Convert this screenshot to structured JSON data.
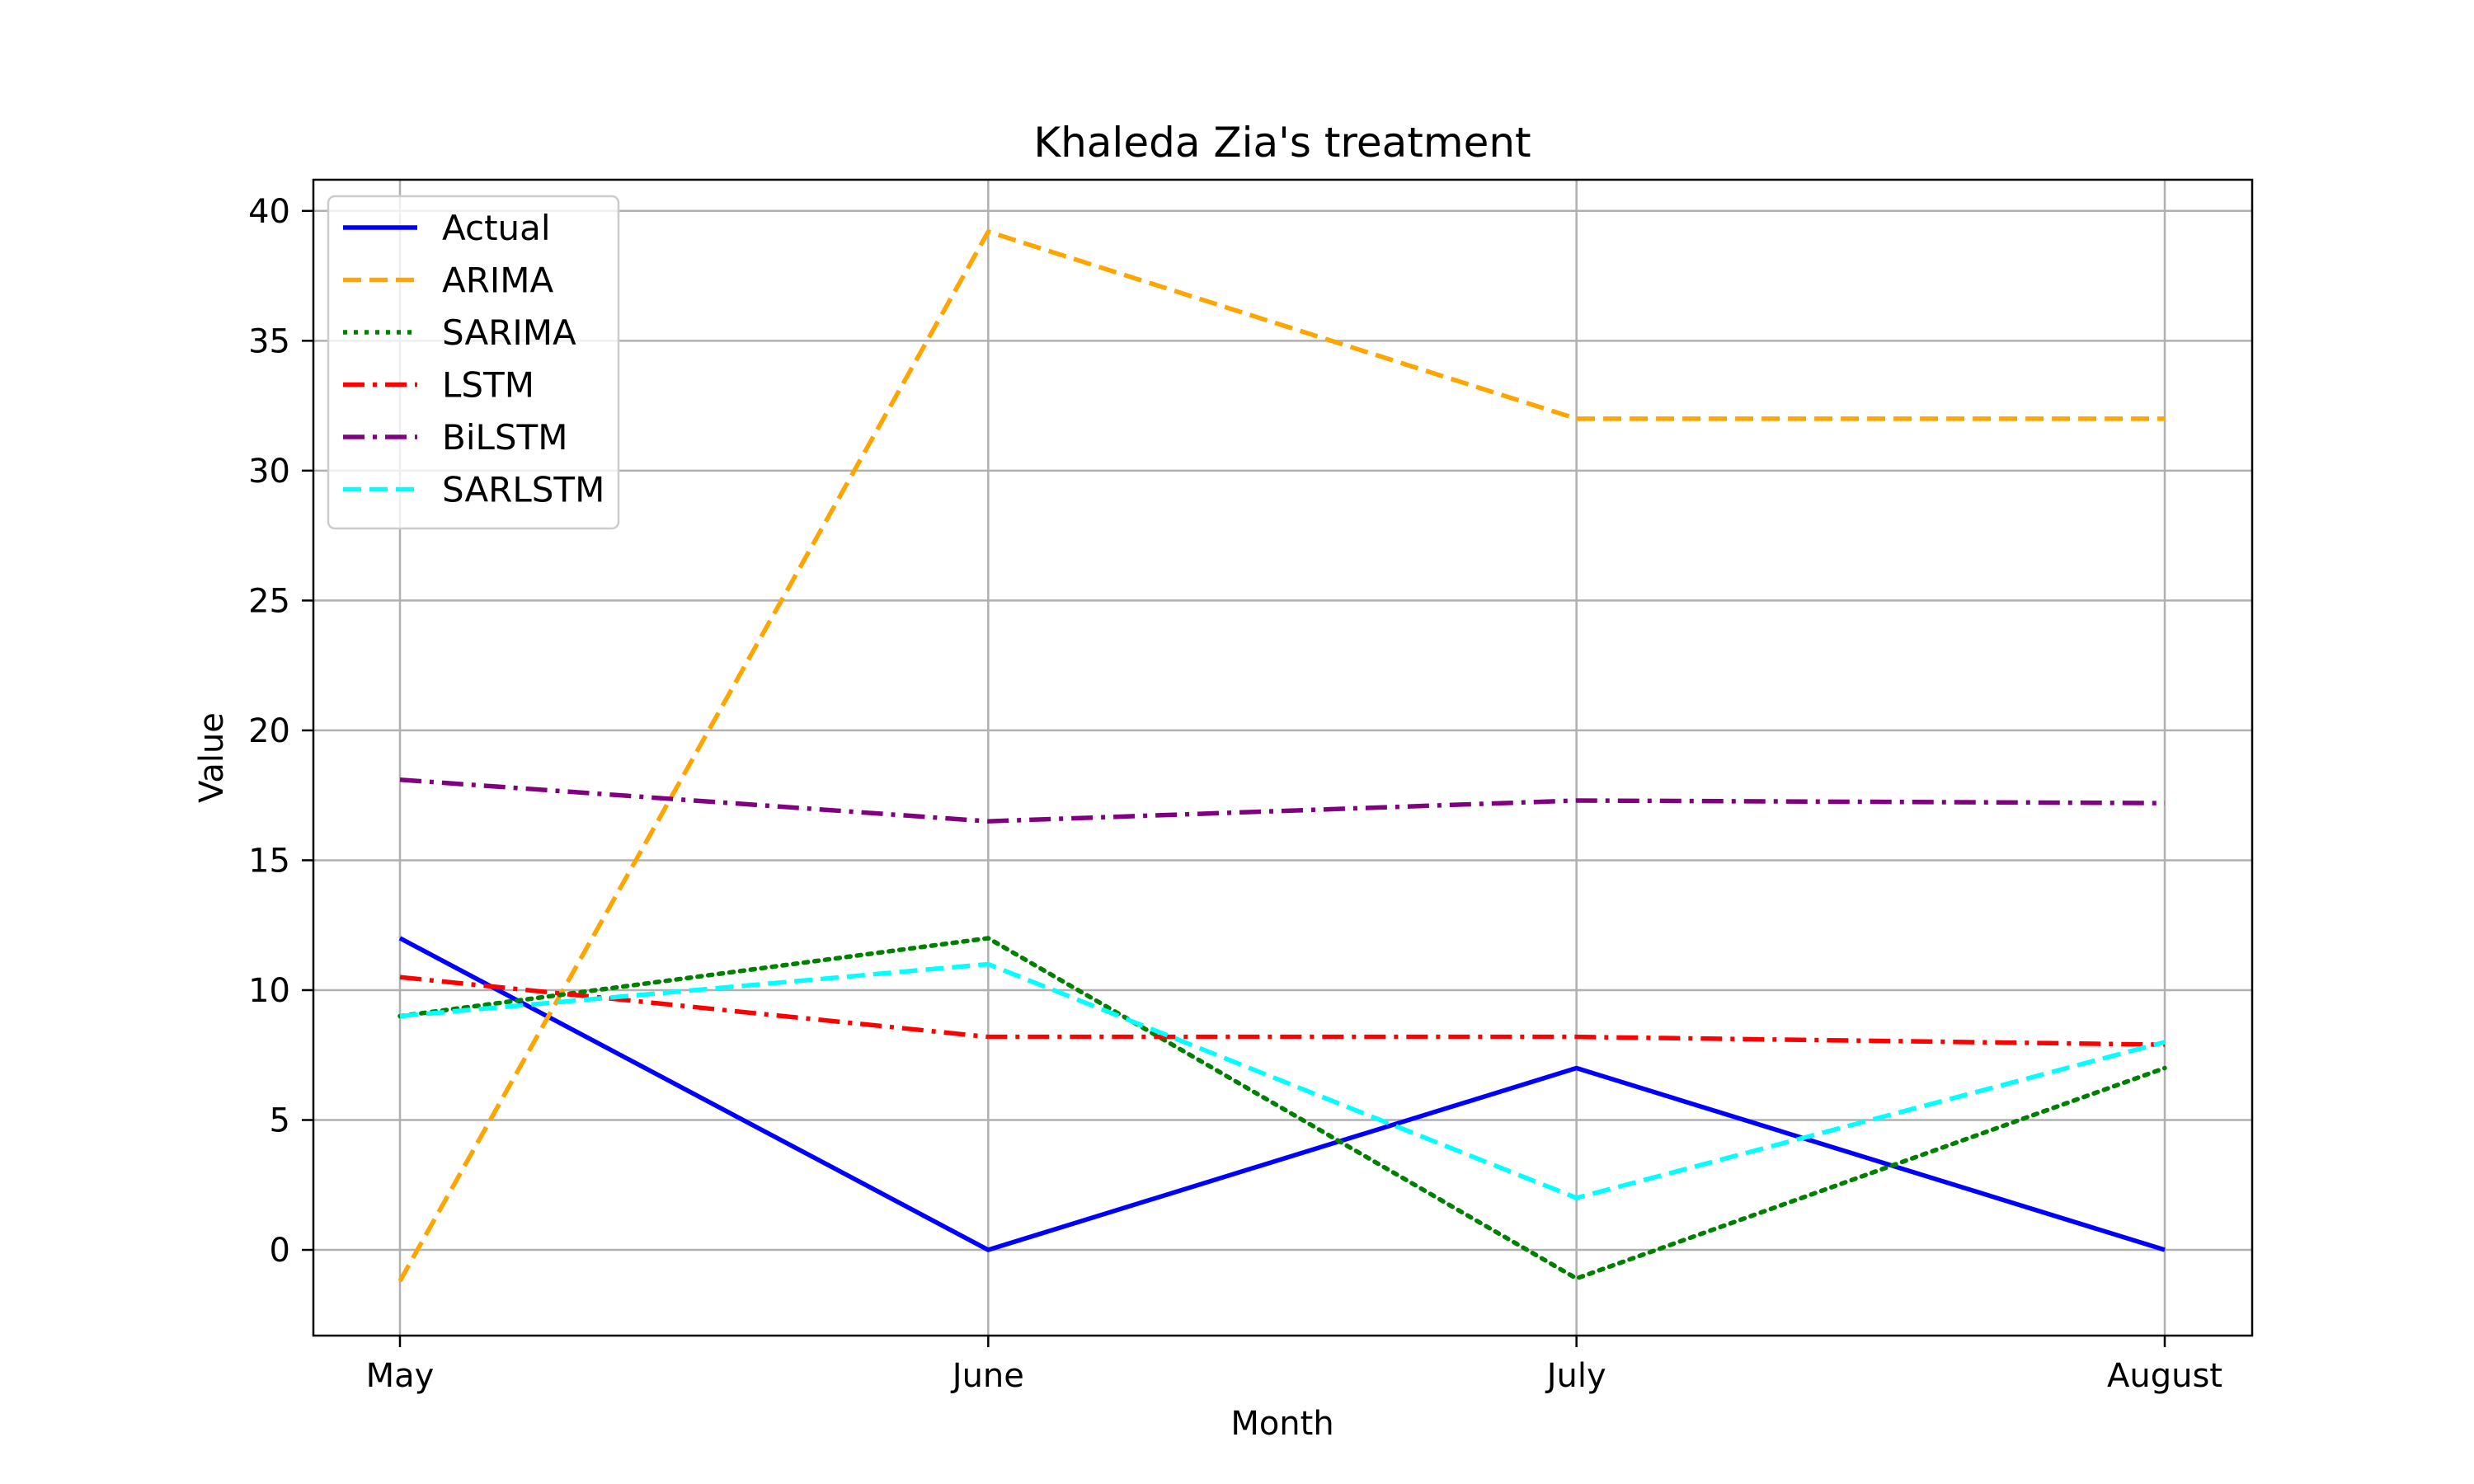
{
  "chart_data": {
    "type": "line",
    "title": "Khaleda Zia's treatment",
    "xlabel": "Month",
    "ylabel": "Value",
    "categories": [
      "May",
      "June",
      "July",
      "August"
    ],
    "ylim": [
      -3.3,
      41.2
    ],
    "yticks": [
      0,
      5,
      10,
      15,
      20,
      25,
      30,
      35,
      40
    ],
    "grid": true,
    "legend_position": "top-left",
    "series": [
      {
        "name": "Actual",
        "values": [
          12,
          0,
          7,
          0
        ],
        "color": "#0000ff",
        "dash": "solid"
      },
      {
        "name": "ARIMA",
        "values": [
          -1.2,
          39.2,
          32.0,
          32.0
        ],
        "color": "#ffa500",
        "dash": "dashed"
      },
      {
        "name": "SARIMA",
        "values": [
          9,
          12,
          -1.1,
          7
        ],
        "color": "#008000",
        "dash": "dotted"
      },
      {
        "name": "LSTM",
        "values": [
          10.5,
          8.2,
          8.2,
          7.9
        ],
        "color": "#ff0000",
        "dash": "dashdot"
      },
      {
        "name": "BiLSTM",
        "values": [
          18.1,
          16.5,
          17.3,
          17.2
        ],
        "color": "#800080",
        "dash": "dashdot"
      },
      {
        "name": "SARLSTM",
        "values": [
          9,
          11,
          2,
          8
        ],
        "color": "#00ffff",
        "dash": "dashed"
      }
    ]
  }
}
